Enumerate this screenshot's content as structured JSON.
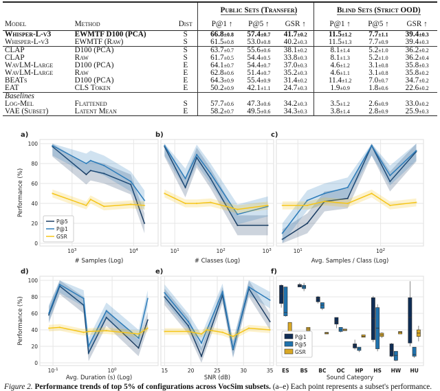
{
  "table": {
    "group_headers": [
      "Public Sets (Transfer)",
      "Blind Sets (Strict OOD)"
    ],
    "columns": [
      "Model",
      "Method",
      "Dist",
      "P@1 ↑",
      "P@5 ↑",
      "GSR ↑",
      "P@1 ↑",
      "P@5 ↑",
      "GSR ↑"
    ],
    "rows": [
      {
        "bold": true,
        "model": "Whisper-L-v3",
        "method": "EWMTF D100 (PCA)",
        "dist": "S",
        "vals": [
          [
            "66.8",
            "±0.8"
          ],
          [
            "57.4",
            "±0.7"
          ],
          [
            "41.7",
            "±0.2"
          ],
          [
            "11.5",
            "±1.2"
          ],
          [
            "7.7",
            "±1.1"
          ],
          [
            "39.4",
            "±0.3"
          ]
        ]
      },
      {
        "model": "Whisper-L-v3",
        "method": "EWMTF (Raw)",
        "dist": "S",
        "vals": [
          [
            "61.5",
            "±0.8"
          ],
          [
            "53.0",
            "±0.8"
          ],
          [
            "40.2",
            "±0.3"
          ],
          [
            "11.5",
            "±1.3"
          ],
          [
            "7.7",
            "±0.9"
          ],
          [
            "39.4",
            "±0.3"
          ]
        ]
      },
      {
        "line": true,
        "model": "CLAP",
        "method": "D100 (PCA)",
        "dist": "S",
        "vals": [
          [
            "63.7",
            "±0.7"
          ],
          [
            "55.6",
            "±0.6"
          ],
          [
            "38.1",
            "±0.2"
          ],
          [
            "8.1",
            "±1.4"
          ],
          [
            "5.2",
            "±1.0"
          ],
          [
            "36.2",
            "±0.2"
          ]
        ]
      },
      {
        "model": "CLAP",
        "method": "Raw",
        "dist": "S",
        "vals": [
          [
            "61.7",
            "±0.5"
          ],
          [
            "54.4",
            "±0.5"
          ],
          [
            "33.8",
            "±0.3"
          ],
          [
            "8.1",
            "±1.3"
          ],
          [
            "5.2",
            "±1.0"
          ],
          [
            "36.2",
            "±0.4"
          ]
        ]
      },
      {
        "model": "WavLM-Large",
        "method": "D100 (PCA)",
        "dist": "E",
        "vals": [
          [
            "64.1",
            "±0.7"
          ],
          [
            "54.4",
            "±0.7"
          ],
          [
            "37.0",
            "±0.3"
          ],
          [
            "4.6",
            "±1.2"
          ],
          [
            "3.1",
            "±0.8"
          ],
          [
            "35.8",
            "±0.3"
          ]
        ]
      },
      {
        "model": "WavLM-Large",
        "method": "Raw",
        "dist": "E",
        "vals": [
          [
            "62.8",
            "±0.6"
          ],
          [
            "51.4",
            "±0.7"
          ],
          [
            "35.2",
            "±0.3"
          ],
          [
            "4.6",
            "±1.1"
          ],
          [
            "3.1",
            "±0.8"
          ],
          [
            "35.8",
            "±0.2"
          ]
        ]
      },
      {
        "model": "BEATs",
        "method": "D100 (PCA)",
        "dist": "E",
        "vals": [
          [
            "64.3",
            "±0.9"
          ],
          [
            "55.4",
            "±0.9"
          ],
          [
            "31.4",
            "±0.2"
          ],
          [
            "11.4",
            "±1.2"
          ],
          [
            "7.0",
            "±0.7"
          ],
          [
            "34.7",
            "±0.2"
          ]
        ]
      },
      {
        "model": "EAT",
        "method": "CLS Token",
        "dist": "E",
        "vals": [
          [
            "50.2",
            "±0.9"
          ],
          [
            "42.1",
            "±1.1"
          ],
          [
            "24.7",
            "±0.3"
          ],
          [
            "1.9",
            "±0.9"
          ],
          [
            "1.8",
            "±0.6"
          ],
          [
            "22.6",
            "±0.2"
          ]
        ]
      },
      {
        "line": true,
        "section": "Baselines"
      },
      {
        "model": "Log-Mel",
        "method": "Flattened",
        "dist": "S",
        "vals": [
          [
            "57.7",
            "±0.6"
          ],
          [
            "47.3",
            "±0.6"
          ],
          [
            "34.2",
            "±0.3"
          ],
          [
            "3.5",
            "±1.2"
          ],
          [
            "2.6",
            "±0.9"
          ],
          [
            "33.0",
            "±0.2"
          ]
        ]
      },
      {
        "model": "VAE (Subset)",
        "method": "Latent Mean",
        "dist": "E",
        "vals": [
          [
            "58.2",
            "±0.7"
          ],
          [
            "49.5",
            "±0.6"
          ],
          [
            "34.3",
            "±0.3"
          ],
          [
            "3.8",
            "±1.4"
          ],
          [
            "2.8",
            "±0.9"
          ],
          [
            "25.9",
            "±0.3"
          ]
        ]
      }
    ]
  },
  "colors": {
    "p5": "#1b3d63",
    "p1": "#2b7bb9",
    "gsr": "#f5c518",
    "box_p1": "#0f2d55",
    "box_p5": "#1f72ad",
    "box_gsr": "#d9a825"
  },
  "chart_data": [
    {
      "panel": "a)",
      "type": "line",
      "xlabel": "# Samples (Log)",
      "ylabel": "Performance (%)",
      "xscale": "log",
      "xlim": [
        300,
        25000
      ],
      "ylim": [
        0,
        100
      ],
      "xticks": [
        "10^3",
        "10^4"
      ],
      "yticks": [
        0,
        20,
        40,
        60,
        80,
        100
      ],
      "grid": true,
      "legend": {
        "placement": "bottom-left",
        "entries": [
          "P@5",
          "P@1",
          "GSR"
        ]
      },
      "series": [
        {
          "name": "P@5",
          "points": [
            [
              480,
              97
            ],
            [
              1700,
              69
            ],
            [
              2000,
              73
            ],
            [
              3300,
              70
            ],
            [
              9000,
              59
            ],
            [
              15000,
              20
            ]
          ]
        },
        {
          "name": "P@1",
          "points": [
            [
              480,
              98
            ],
            [
              1700,
              80
            ],
            [
              2000,
              83
            ],
            [
              3300,
              78
            ],
            [
              9000,
              62
            ],
            [
              15000,
              43
            ]
          ]
        },
        {
          "name": "GSR",
          "points": [
            [
              480,
              50
            ],
            [
              1700,
              38
            ],
            [
              2000,
              44
            ],
            [
              3300,
              37
            ],
            [
              9000,
              39
            ],
            [
              15000,
              38
            ]
          ]
        }
      ]
    },
    {
      "panel": "b)",
      "type": "line",
      "xlabel": "# Classes (Log)",
      "xscale": "log",
      "xlim": [
        5,
        1400
      ],
      "ylim": [
        0,
        100
      ],
      "xticks": [
        "10^1",
        "10^2",
        "10^3"
      ],
      "grid": true,
      "series": [
        {
          "name": "P@5",
          "points": [
            [
              6,
              97
            ],
            [
              17,
              56
            ],
            [
              30,
              86
            ],
            [
              60,
              65
            ],
            [
              230,
              18
            ],
            [
              1050,
              18
            ]
          ]
        },
        {
          "name": "P@1",
          "points": [
            [
              6,
              98
            ],
            [
              17,
              65
            ],
            [
              30,
              89
            ],
            [
              60,
              70
            ],
            [
              230,
              29
            ],
            [
              1050,
              37
            ]
          ]
        },
        {
          "name": "GSR",
          "points": [
            [
              6,
              50
            ],
            [
              17,
              40
            ],
            [
              30,
              40
            ],
            [
              60,
              41
            ],
            [
              230,
              34
            ],
            [
              1050,
              38
            ]
          ]
        }
      ]
    },
    {
      "panel": "c)",
      "type": "line",
      "xlabel": "Avg. Samples / Class (Log)",
      "xscale": "log",
      "xlim": [
        5.5,
        330
      ],
      "ylim": [
        0,
        100
      ],
      "xticks": [
        "10^1",
        "10^2"
      ],
      "grid": true,
      "series": [
        {
          "name": "P@5",
          "points": [
            [
              6.5,
              4
            ],
            [
              13,
              20
            ],
            [
              21,
              42
            ],
            [
              40,
              45
            ],
            [
              78,
              98
            ],
            [
              130,
              62
            ],
            [
              270,
              92
            ]
          ]
        },
        {
          "name": "P@1",
          "points": [
            [
              6.5,
              10
            ],
            [
              13,
              43
            ],
            [
              21,
              50
            ],
            [
              40,
              56
            ],
            [
              78,
              98
            ],
            [
              130,
              68
            ],
            [
              270,
              93
            ]
          ]
        },
        {
          "name": "GSR",
          "points": [
            [
              6.5,
              38
            ],
            [
              13,
              38
            ],
            [
              21,
              42
            ],
            [
              40,
              40
            ],
            [
              78,
              50
            ],
            [
              130,
              38
            ],
            [
              270,
              41
            ]
          ]
        }
      ]
    },
    {
      "panel": "d)",
      "type": "line",
      "xlabel": "Avg. Duration (s) (Log)",
      "ylabel": "Performance (%)",
      "xscale": "log",
      "xlim": [
        0.06,
        6
      ],
      "ylim": [
        0,
        100
      ],
      "xticks": [
        "10^-1",
        "10^0"
      ],
      "yticks": [
        0,
        20,
        40,
        60,
        80,
        100
      ],
      "grid": true,
      "series": [
        {
          "name": "P@5",
          "points": [
            [
              0.085,
              58
            ],
            [
              0.13,
              93
            ],
            [
              0.33,
              70
            ],
            [
              0.4,
              12
            ],
            [
              0.8,
              55
            ],
            [
              2.8,
              18
            ],
            [
              4,
              52
            ]
          ]
        },
        {
          "name": "P@1",
          "points": [
            [
              0.085,
              60
            ],
            [
              0.13,
              95
            ],
            [
              0.33,
              78
            ],
            [
              0.4,
              20
            ],
            [
              0.8,
              63
            ],
            [
              2.8,
              30
            ],
            [
              4,
              78
            ]
          ]
        },
        {
          "name": "GSR",
          "points": [
            [
              0.085,
              42
            ],
            [
              0.13,
              43
            ],
            [
              0.33,
              37
            ],
            [
              0.4,
              38
            ],
            [
              0.8,
              39
            ],
            [
              2.8,
              35
            ],
            [
              4,
              42
            ]
          ]
        }
      ]
    },
    {
      "panel": "e)",
      "type": "line",
      "xlabel": "SNR (dB)",
      "xscale": "linear",
      "xlim": [
        14.3,
        35.7
      ],
      "ylim": [
        0,
        100
      ],
      "xticks": [
        "15",
        "20",
        "25",
        "30",
        "35"
      ],
      "grid": true,
      "series": [
        {
          "name": "P@5",
          "points": [
            [
              15,
              80
            ],
            [
              19.5,
              45
            ],
            [
              22,
              8
            ],
            [
              26,
              82
            ],
            [
              28,
              16
            ],
            [
              31,
              90
            ],
            [
              35,
              50
            ]
          ]
        },
        {
          "name": "P@1",
          "points": [
            [
              15,
              85
            ],
            [
              19.5,
              50
            ],
            [
              22,
              24
            ],
            [
              26,
              86
            ],
            [
              28,
              17
            ],
            [
              31,
              92
            ],
            [
              35,
              76
            ]
          ]
        },
        {
          "name": "GSR",
          "points": [
            [
              15,
              38
            ],
            [
              19.5,
              38
            ],
            [
              22,
              35
            ],
            [
              23,
              40
            ],
            [
              26,
              37
            ],
            [
              28,
              32
            ],
            [
              31,
              42
            ],
            [
              35,
              40
            ]
          ]
        }
      ]
    },
    {
      "panel": "f)",
      "type": "box",
      "xlabel": "Sound Category",
      "ylim": [
        0,
        100
      ],
      "categories": [
        "ES",
        "BS",
        "BC",
        "OC",
        "HP",
        "HS",
        "HW",
        "HU"
      ],
      "legend": {
        "placement": "bottom-left",
        "entries": [
          "P@1",
          "P@5",
          "GSR"
        ]
      },
      "series": [
        {
          "name": "P@1",
          "boxes": [
            [
              67,
              72,
              84,
              94,
              95
            ],
            [
              92,
              92,
              94,
              95,
              97
            ],
            [
              72,
              74,
              78,
              80,
              81
            ],
            [
              42,
              47,
              50,
              55,
              55
            ],
            [
              16,
              18,
              21,
              23,
              28
            ],
            [
              25,
              28,
              54,
              79,
              81
            ],
            [
              7,
              8,
              15,
              23,
              24
            ],
            [
              20,
              24,
              55,
              79,
              99
            ]
          ]
        },
        {
          "name": "P@5",
          "boxes": [
            [
              56,
              57,
              61,
              92,
              92
            ],
            [
              87,
              90,
              92,
              94,
              97
            ],
            [
              64,
              66,
              70,
              73,
              73
            ],
            [
              37,
              38,
              40,
              43,
              43
            ],
            [
              13,
              15,
              17,
              19,
              19
            ],
            [
              14,
              17,
              42,
              67,
              71
            ],
            [
              2,
              3,
              9,
              14,
              14
            ],
            [
              6,
              8,
              10,
              19,
              19
            ]
          ]
        },
        {
          "name": "GSR",
          "boxes": [
            [
              37,
              37,
              38,
              49,
              49
            ],
            [
              37,
              39,
              41,
              43,
              43
            ],
            [
              35,
              35,
              36,
              37,
              37
            ],
            [
              39,
              39,
              40,
              41,
              41
            ],
            [
              31,
              31,
              32,
              34,
              34
            ],
            [
              30,
              32,
              34,
              36,
              37
            ],
            [
              35,
              35,
              37,
              38,
              38
            ],
            [
              26,
              32,
              36,
              40,
              45
            ]
          ]
        }
      ]
    }
  ],
  "caption": {
    "label": "Figure 2.",
    "bold": "Performance trends of top 5% of configurations across VocSim subsets.",
    "rest": "(a–e) Each point represents a subset's performance."
  }
}
